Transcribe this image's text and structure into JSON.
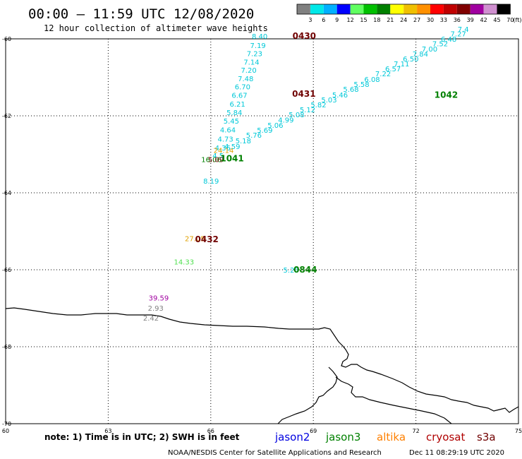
{
  "header": {
    "title": "00:00 – 11:59 UTC 12/08/2020",
    "subtitle": "12 hour collection of altimeter wave heights"
  },
  "colorbar": {
    "labels": [
      "3",
      "6",
      "9",
      "12",
      "15",
      "18",
      "21",
      "24",
      "27",
      "30",
      "33",
      "36",
      "39",
      "42",
      "45",
      "70"
    ],
    "unit": "(ft)",
    "colors": [
      "#808080",
      "#00e8e8",
      "#00b0ff",
      "#0000ff",
      "#60ff60",
      "#00c000",
      "#008000",
      "#ffff00",
      "#f0c000",
      "#ff9000",
      "#ff0000",
      "#c00000",
      "#800000",
      "#a000a0",
      "#d090d0",
      "#000000"
    ]
  },
  "axes": {
    "x_ticks": [
      "60",
      "63",
      "66",
      "69",
      "72",
      "75"
    ],
    "y_ticks": [
      "-60",
      "-62",
      "-64",
      "-66",
      "-68",
      "-70"
    ]
  },
  "colors": {
    "jason2": "#0000e0",
    "jason3": "#008000",
    "altika": "#ff8000",
    "cryosat": "#b00000",
    "s3a": "#700000",
    "cyan": "#00c8d8",
    "purple": "#a000a0",
    "gray": "#808080",
    "lightgreen": "#50e050",
    "ochre": "#e0a000"
  },
  "passes": [
    {
      "id": "p0430",
      "time": "0430",
      "color": "s3a",
      "time_pos": [
        2.39,
        -60.0
      ],
      "labels": [
        {
          "text": "8.40",
          "pos": [
            1.2,
            -60.0
          ],
          "color": "cyan"
        },
        {
          "text": "7.19",
          "pos": [
            1.15,
            -60.24
          ],
          "color": "cyan"
        },
        {
          "text": "7.23",
          "pos": [
            1.05,
            -60.45
          ],
          "color": "cyan"
        },
        {
          "text": "7.14",
          "pos": [
            0.96,
            -60.67
          ],
          "color": "cyan"
        },
        {
          "text": "7.20",
          "pos": [
            0.88,
            -60.88
          ],
          "color": "cyan"
        },
        {
          "text": "7.48",
          "pos": [
            0.79,
            -61.1
          ],
          "color": "cyan"
        },
        {
          "text": "6.70",
          "pos": [
            0.7,
            -61.31
          ],
          "color": "cyan"
        },
        {
          "text": "6.67",
          "pos": [
            0.61,
            -61.53
          ],
          "color": "cyan"
        }
      ]
    },
    {
      "id": "p0431",
      "time": "0431",
      "color": "s3a",
      "time_pos": [
        2.38,
        -61.5
      ],
      "labels": [
        {
          "text": "6.21",
          "pos": [
            0.55,
            -61.76
          ],
          "color": "cyan"
        },
        {
          "text": "5.84",
          "pos": [
            0.46,
            -61.98
          ],
          "color": "cyan"
        },
        {
          "text": "5.45",
          "pos": [
            0.37,
            -62.2
          ],
          "color": "cyan"
        },
        {
          "text": "4.64",
          "pos": [
            0.27,
            -62.43
          ],
          "color": "cyan"
        },
        {
          "text": "4.73",
          "pos": [
            0.2,
            -62.67
          ],
          "color": "cyan"
        },
        {
          "text": "4.36",
          "pos": [
            0.12,
            -62.9
          ],
          "color": "cyan"
        },
        {
          "text": "4.5",
          "pos": [
            0.05,
            -63.1
          ],
          "color": "cyan"
        },
        {
          "text": "8.19",
          "pos": [
            -0.22,
            -63.76
          ],
          "color": "cyan"
        }
      ]
    },
    {
      "id": "p1041",
      "time": "1041",
      "color": "jason3",
      "time_pos": [
        0.28,
        -63.18
      ],
      "labels": [
        {
          "text": "16.06",
          "pos": [
            -0.28,
            -63.2
          ],
          "color": "jason3"
        },
        {
          "text": "5.09",
          "pos": [
            -0.08,
            -63.2
          ],
          "color": "s3a"
        },
        {
          "text": "24.14",
          "pos": [
            0.08,
            -62.96
          ],
          "color": "ochre"
        },
        {
          "text": "4.59",
          "pos": [
            0.4,
            -62.86
          ],
          "color": "cyan"
        },
        {
          "text": "5.18",
          "pos": [
            0.72,
            -62.72
          ],
          "color": "cyan"
        },
        {
          "text": "5.76",
          "pos": [
            1.03,
            -62.57
          ],
          "color": "cyan"
        },
        {
          "text": "5.69",
          "pos": [
            1.35,
            -62.44
          ],
          "color": "cyan"
        },
        {
          "text": "5.06",
          "pos": [
            1.66,
            -62.31
          ],
          "color": "cyan"
        },
        {
          "text": "4.99",
          "pos": [
            1.97,
            -62.17
          ],
          "color": "cyan"
        },
        {
          "text": "5.08",
          "pos": [
            2.28,
            -62.04
          ],
          "color": "cyan"
        },
        {
          "text": "5.12",
          "pos": [
            2.6,
            -61.91
          ],
          "color": "cyan"
        },
        {
          "text": "5.82",
          "pos": [
            2.92,
            -61.78
          ],
          "color": "cyan"
        },
        {
          "text": "5.03",
          "pos": [
            3.23,
            -61.65
          ],
          "color": "cyan"
        },
        {
          "text": "5.46",
          "pos": [
            3.55,
            -61.52
          ],
          "color": "cyan"
        },
        {
          "text": "5.68",
          "pos": [
            3.87,
            -61.38
          ],
          "color": "cyan"
        },
        {
          "text": "5.58",
          "pos": [
            4.18,
            -61.25
          ],
          "color": "cyan"
        },
        {
          "text": "6.08",
          "pos": [
            4.49,
            -61.12
          ],
          "color": "cyan"
        }
      ]
    },
    {
      "id": "p1042",
      "time": "1042",
      "color": "jason3",
      "time_pos": [
        6.54,
        -61.53
      ],
      "labels": [
        {
          "text": "7.22",
          "pos": [
            4.81,
            -60.97
          ],
          "color": "cyan"
        },
        {
          "text": "6.57",
          "pos": [
            5.1,
            -60.84
          ],
          "color": "cyan"
        },
        {
          "text": "7.11",
          "pos": [
            5.35,
            -60.72
          ],
          "color": "cyan"
        },
        {
          "text": "6.50",
          "pos": [
            5.62,
            -60.59
          ],
          "color": "cyan"
        },
        {
          "text": "7.84",
          "pos": [
            5.9,
            -60.46
          ],
          "color": "cyan"
        },
        {
          "text": "7.00",
          "pos": [
            6.17,
            -60.33
          ],
          "color": "cyan"
        },
        {
          "text": "7.52",
          "pos": [
            6.48,
            -60.19
          ],
          "color": "cyan"
        },
        {
          "text": "6.48",
          "pos": [
            6.73,
            -60.07
          ],
          "color": "cyan"
        },
        {
          "text": "7.27",
          "pos": [
            7.01,
            -59.94
          ],
          "color": "cyan"
        },
        {
          "text": "7.4",
          "pos": [
            7.22,
            -59.82
          ],
          "color": "cyan"
        }
      ]
    },
    {
      "id": "p0432",
      "time": "0432",
      "color": "s3a",
      "time_pos": [
        -0.46,
        -65.28
      ],
      "labels": [
        {
          "text": "27.05",
          "pos": [
            -0.76,
            -65.26
          ],
          "color": "ochre"
        },
        {
          "text": "14.33",
          "pos": [
            -1.08,
            -65.86
          ],
          "color": "lightgreen"
        }
      ]
    },
    {
      "id": "p0844",
      "time": "0844",
      "color": "jason3",
      "time_pos": [
        2.42,
        -66.07
      ],
      "labels": [
        {
          "text": "5.23",
          "pos": [
            2.12,
            -66.07
          ],
          "color": "cyan"
        }
      ]
    },
    {
      "id": "pmisc",
      "time": "",
      "color": "gray",
      "time_pos": [
        0,
        0
      ],
      "labels": [
        {
          "text": "39.59",
          "pos": [
            -1.82,
            -66.8
          ],
          "color": "purple"
        },
        {
          "text": "2.93",
          "pos": [
            -1.84,
            -67.06
          ],
          "color": "gray"
        },
        {
          "text": "2.42",
          "pos": [
            -1.98,
            -67.32
          ],
          "color": "gray"
        }
      ]
    }
  ],
  "footer": {
    "note": "note:  1) Time is in UTC;  2) SWH is in feet",
    "credit": "NOAA/NESDIS Center for Satellite Applications and Research",
    "timestamp": "Dec 11 08:29:19 UTC 2020"
  },
  "legend": [
    {
      "name": "jason2",
      "color": "jason2"
    },
    {
      "name": "jason3",
      "color": "jason3"
    },
    {
      "name": "altika",
      "color": "altika"
    },
    {
      "name": "cryosat",
      "color": "cryosat"
    },
    {
      "name": "s3a",
      "color": "s3a"
    }
  ]
}
